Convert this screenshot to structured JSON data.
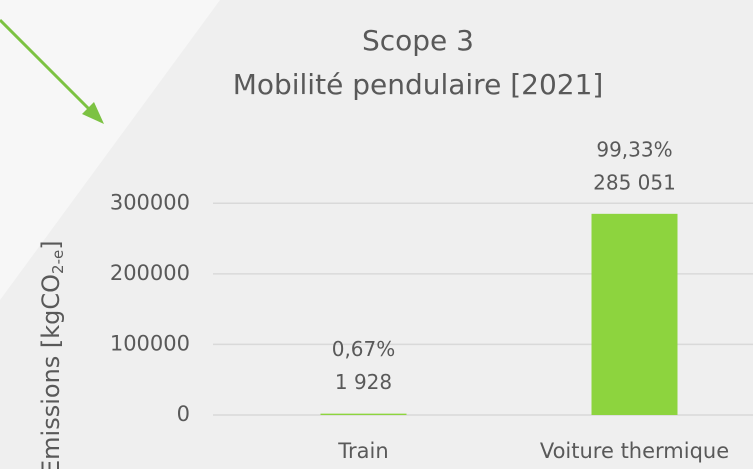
{
  "chart_data": {
    "type": "bar",
    "title": [
      "Scope 3",
      "Mobilité pendulaire [2021]"
    ],
    "y_label": {
      "text": "Emissions [kgCO",
      "sub": "2-e",
      "end": "]"
    },
    "categories": [
      "Train",
      "Voiture thermique"
    ],
    "values": [
      1928,
      285051
    ],
    "value_labels": [
      "1 928",
      "285 051"
    ],
    "percents": [
      0.67,
      99.33
    ],
    "percent_labels": [
      "0,67%",
      "99,33%"
    ],
    "color": "#8dd43e",
    "ylim": [
      0,
      350000
    ],
    "yticks": [
      0,
      100000,
      200000,
      300000
    ],
    "grid": true
  }
}
